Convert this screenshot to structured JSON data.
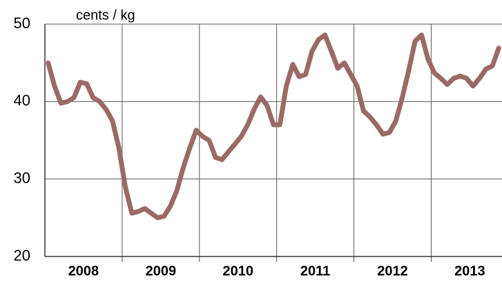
{
  "chart_data": {
    "type": "line",
    "y_label": "cents / kg",
    "categories": [
      null,
      null,
      null,
      null,
      null,
      null,
      "2008",
      null,
      null,
      null,
      null,
      null,
      null,
      null,
      null,
      null,
      null,
      null,
      "2009",
      null,
      null,
      null,
      null,
      null,
      null,
      null,
      null,
      null,
      null,
      null,
      "2010",
      null,
      null,
      null,
      null,
      null,
      null,
      null,
      null,
      null,
      null,
      null,
      "2011",
      null,
      null,
      null,
      null,
      null,
      null,
      null,
      null,
      null,
      null,
      null,
      "2012",
      null,
      null,
      null,
      null,
      null,
      null,
      null,
      null,
      null,
      null,
      null,
      "2013",
      null,
      null,
      null,
      null
    ],
    "values": [
      45.0,
      42.0,
      39.8,
      40.0,
      40.5,
      42.5,
      42.3,
      40.5,
      40.0,
      39.0,
      37.5,
      34.0,
      29.0,
      25.6,
      25.8,
      26.2,
      25.6,
      25.0,
      25.2,
      26.5,
      28.5,
      31.5,
      34.0,
      36.3,
      35.5,
      35.0,
      32.8,
      32.5,
      33.5,
      34.5,
      35.5,
      37.0,
      39.0,
      40.6,
      39.5,
      37.0,
      37.0,
      42.0,
      44.8,
      43.2,
      43.5,
      46.5,
      48.0,
      48.6,
      46.5,
      44.3,
      45.0,
      43.5,
      42.0,
      38.8,
      38.0,
      37.0,
      35.8,
      36.0,
      37.5,
      40.5,
      44.0,
      47.8,
      48.6,
      45.5,
      43.7,
      43.0,
      42.2,
      43.0,
      43.3,
      43.0,
      42.0,
      43.0,
      44.2,
      44.6,
      46.9
    ],
    "color": "#9b6a66",
    "ylim": [
      20,
      50
    ],
    "yticks": [
      20,
      30,
      40,
      50
    ],
    "grid": true
  }
}
